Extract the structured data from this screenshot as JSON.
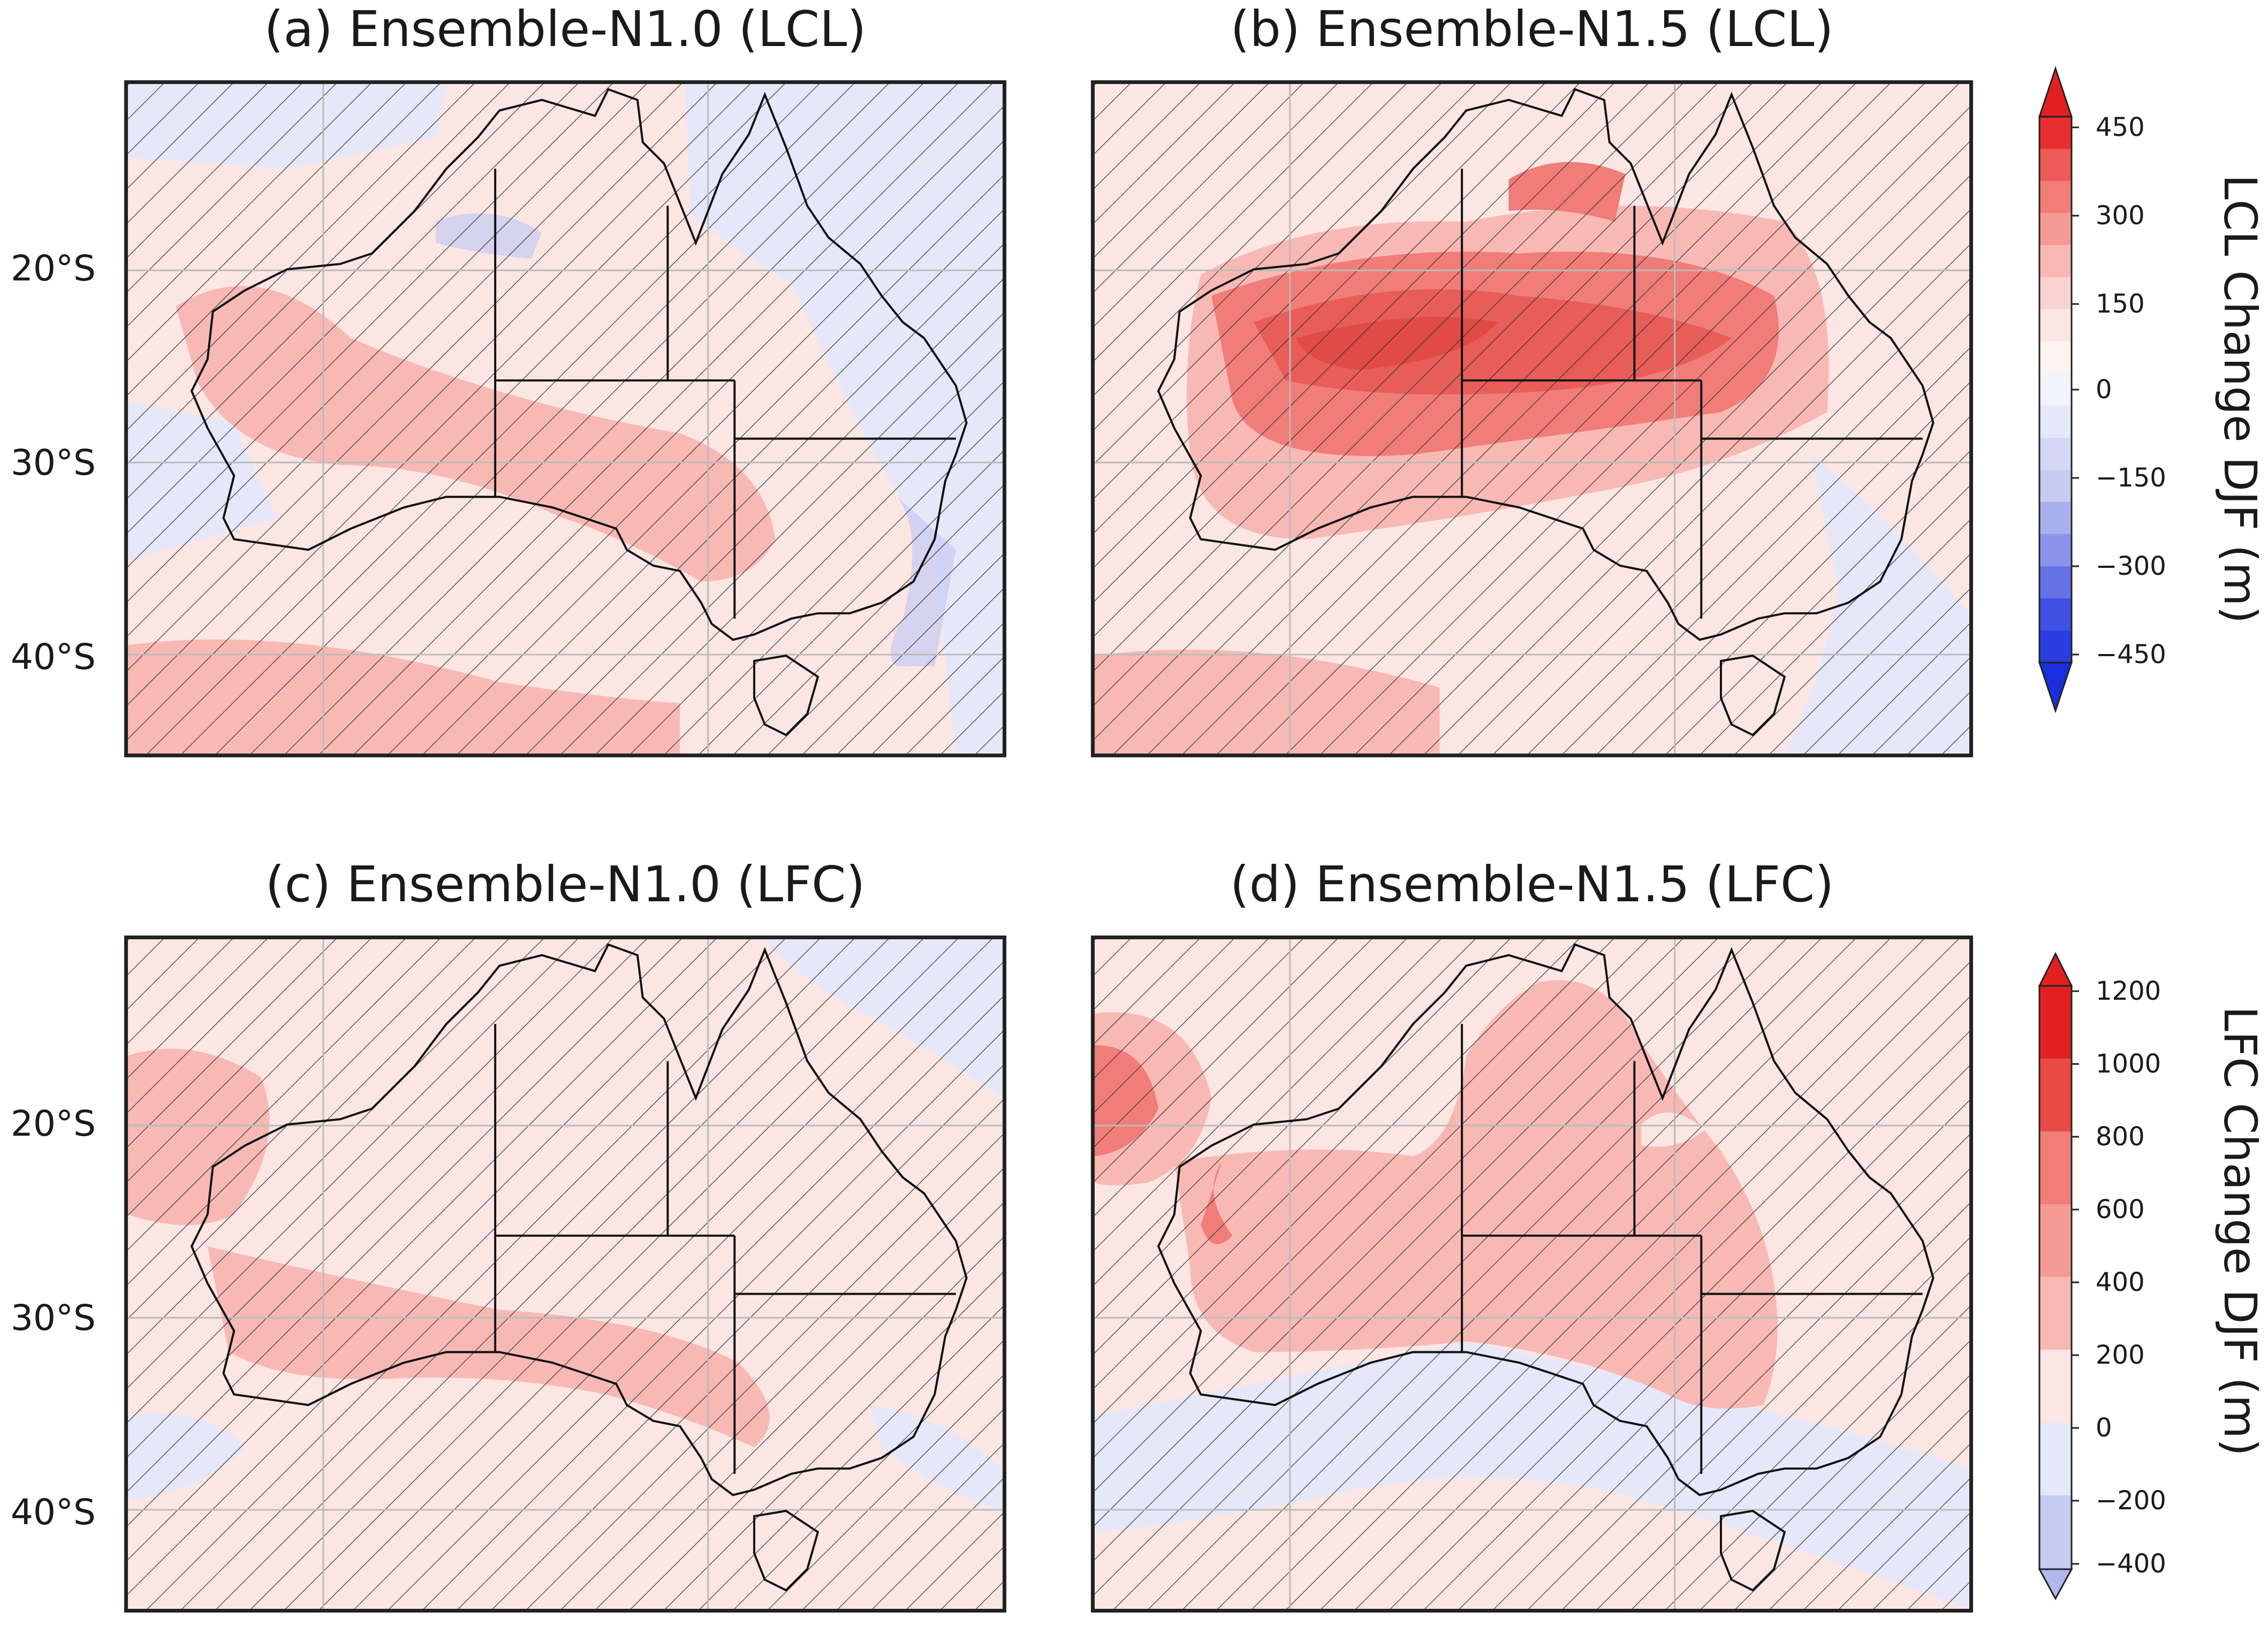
{
  "panels": [
    {
      "title": "(a) Ensemble-N1.0 (LCL)"
    },
    {
      "title": "(b) Ensemble-N1.5 (LCL)"
    },
    {
      "title": "(c) Ensemble-N1.0 (LFC)"
    },
    {
      "title": "(d) Ensemble-N1.5 (LFC)"
    }
  ],
  "lat_labels": [
    "20°S",
    "30°S",
    "40°S"
  ],
  "colorbars": [
    {
      "label": "LCL Change DJF (m)",
      "ticks": [
        "450",
        "300",
        "150",
        "0",
        "−150",
        "−300",
        "−450"
      ]
    },
    {
      "label": "LFC Change DJF (m)",
      "ticks": [
        "1200",
        "1000",
        "800",
        "600",
        "400",
        "200",
        "0",
        "−200",
        "−400"
      ]
    }
  ],
  "colors": {
    "strong_red": "#e32020",
    "mid_red": "#f07d78",
    "light_red": "#f8b9b5",
    "pale_red": "#fbe6e4",
    "pale_blue": "#e6e8fa",
    "light_blue": "#c6cbf2",
    "strong_blue": "#1a2ee0",
    "hatch": "#333333"
  }
}
